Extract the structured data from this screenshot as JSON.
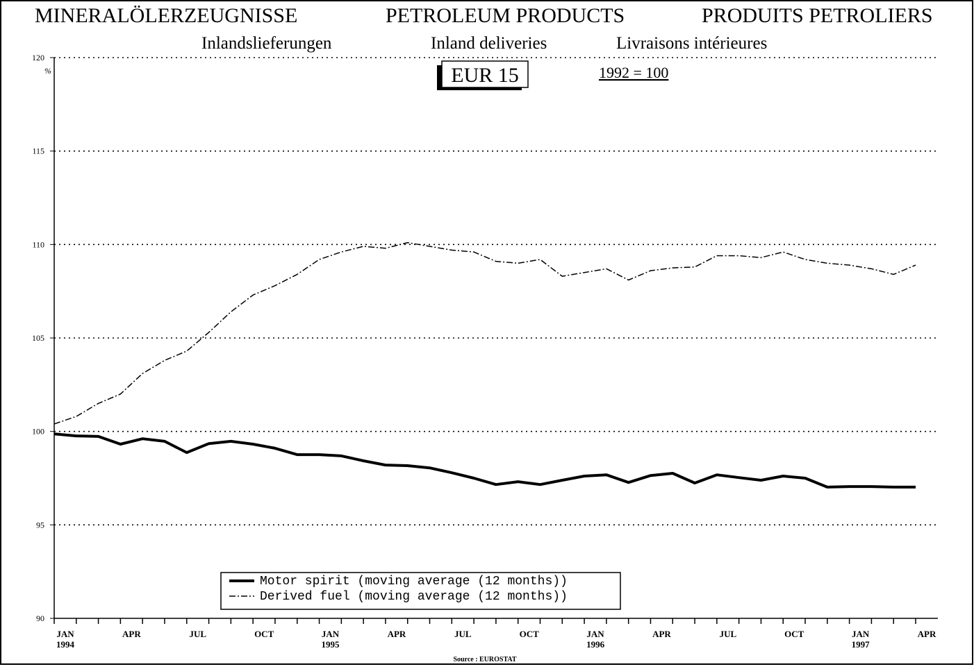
{
  "chart_data": {
    "type": "line",
    "title": [
      "MINERALÖLERZEUGNISSE",
      "PETROLEUM PRODUCTS",
      "PRODUITS PETROLIERS"
    ],
    "subtitle": [
      "Inlandslieferungen",
      "Inland deliveries",
      "Livraisons intérieures"
    ],
    "region": "EUR 15",
    "base": "1992 = 100",
    "y_label": "%",
    "source": "Source : EUROSTAT",
    "categories": [
      "JAN 1994",
      null,
      null,
      "APR",
      null,
      null,
      "JUL",
      null,
      null,
      "OCT",
      null,
      null,
      "JAN 1995",
      null,
      null,
      "APR",
      null,
      null,
      "JUL",
      null,
      null,
      "OCT",
      null,
      null,
      "JAN 1996",
      null,
      null,
      "APR",
      null,
      null,
      "JUL",
      null,
      null,
      "OCT",
      null,
      null,
      "JAN 1997",
      null,
      null,
      "APR"
    ],
    "series": [
      {
        "name": "Motor spirit (moving average (12 months))",
        "color": "#000000",
        "style": "solid",
        "values": [
          99.87,
          99.76,
          99.73,
          99.32,
          99.61,
          99.47,
          98.87,
          99.35,
          99.47,
          99.32,
          99.1,
          98.76,
          98.76,
          98.69,
          98.43,
          98.2,
          98.17,
          98.05,
          97.79,
          97.5,
          97.16,
          97.31,
          97.16,
          97.39,
          97.61,
          97.68,
          97.27,
          97.64,
          97.76,
          97.24,
          97.68,
          97.53,
          97.39,
          97.61,
          97.5,
          97.02,
          97.05,
          97.05,
          97.02,
          97.02
        ]
      },
      {
        "name": "Derived fuel (moving average (12 months))",
        "color": "#000000",
        "style": "dashdot",
        "values": [
          100.4,
          100.8,
          101.5,
          102.0,
          103.1,
          103.8,
          104.3,
          105.3,
          106.4,
          107.3,
          107.8,
          108.4,
          109.2,
          109.6,
          109.9,
          109.8,
          110.1,
          109.9,
          109.7,
          109.6,
          109.1,
          109.0,
          109.2,
          108.3,
          108.5,
          108.7,
          108.1,
          108.6,
          108.75,
          108.8,
          109.4,
          109.4,
          109.3,
          109.6,
          109.2,
          109.0,
          108.9,
          108.7,
          108.4,
          108.9
        ]
      }
    ],
    "ylim": [
      90,
      120
    ],
    "yticks": [
      90,
      95,
      100,
      105,
      110,
      115,
      120
    ],
    "grid": true
  }
}
